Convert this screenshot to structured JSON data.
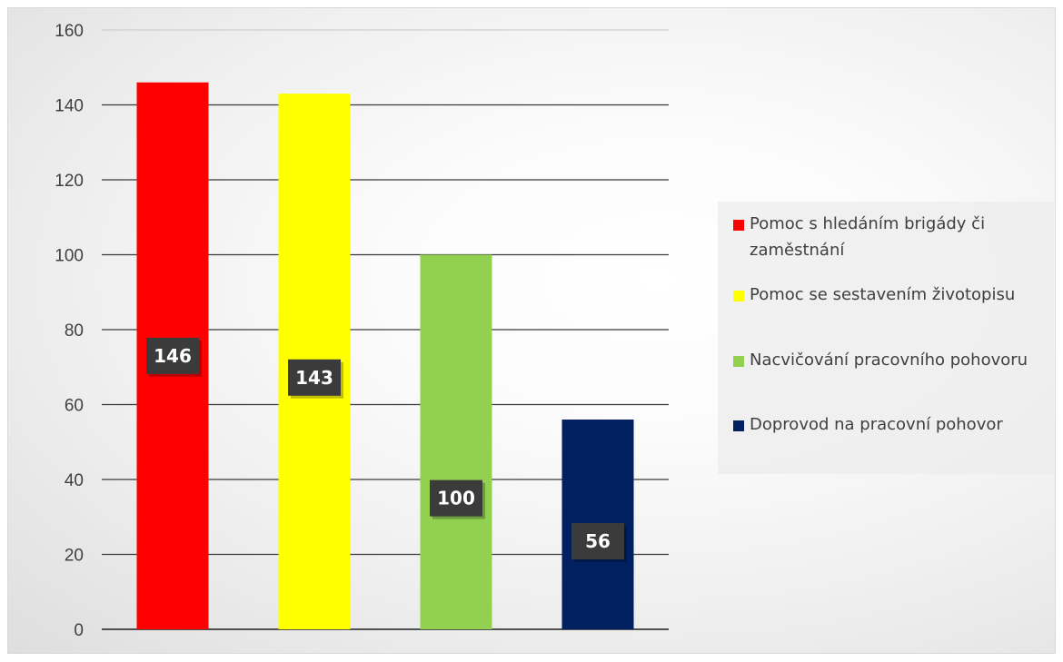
{
  "chart_data": {
    "type": "bar",
    "categories": [
      "Pomoc s hledáním brigády či zaměstnání",
      "Pomoc se sestavením životopisu",
      "Nacvičování pracovního pohovoru",
      "Doprovod na pracovní pohovor"
    ],
    "values": [
      146,
      143,
      100,
      56
    ],
    "colors": [
      "#ff0000",
      "#ffff00",
      "#92d050",
      "#002060"
    ],
    "data_labels": [
      "146",
      "143",
      "100",
      "56"
    ],
    "ylim": [
      0,
      160
    ],
    "yticks": [
      "0",
      "20",
      "40",
      "60",
      "80",
      "100",
      "120",
      "140",
      "160"
    ],
    "title": "",
    "xlabel": "",
    "ylabel": "",
    "grid": true,
    "legend_position": "right"
  }
}
